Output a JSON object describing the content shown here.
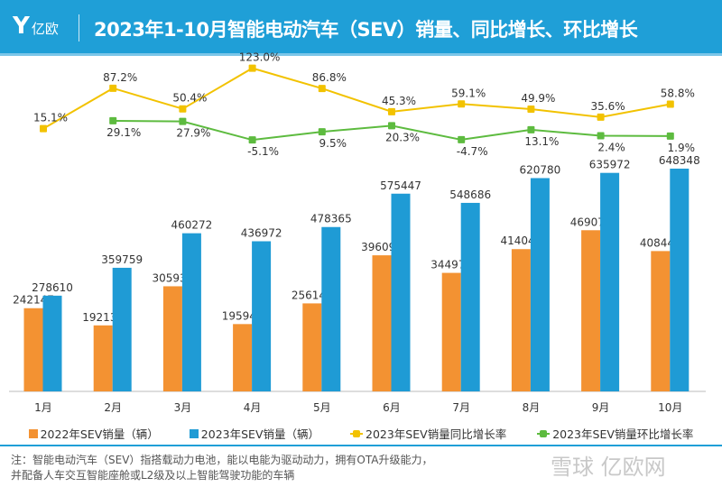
{
  "header": {
    "logo_text": "亿欧",
    "title": "2023年1-10月智能电动汽车（SEV）销量、同比增长、环比增长"
  },
  "colors": {
    "header": "#1f9fd7",
    "bar2022": "#f39232",
    "bar2023": "#1f9bd5",
    "yoy": "#f2c200",
    "mom": "#5dbb3f"
  },
  "chart_data": {
    "type": "bar+line",
    "categories": [
      "1月",
      "2月",
      "3月",
      "4月",
      "5月",
      "6月",
      "7月",
      "8月",
      "9月",
      "10月"
    ],
    "bar_series": [
      {
        "name": "2022年SEV销量（辆）",
        "values": [
          242147,
          192132,
          305938,
          195944,
          256142,
          396091,
          344976,
          414046,
          469075,
          408445
        ]
      },
      {
        "name": "2023年SEV销量（辆）",
        "values": [
          278610,
          359759,
          460272,
          436972,
          478365,
          575447,
          548686,
          620780,
          635972,
          648348
        ]
      }
    ],
    "line_series": [
      {
        "name": "2023年SEV销量同比增长率",
        "values": [
          15.1,
          87.2,
          50.4,
          123.0,
          86.8,
          45.3,
          59.1,
          49.9,
          35.6,
          58.8
        ],
        "labels": [
          "15.1%",
          "87.2%",
          "50.4%",
          "123.0%",
          "86.8%",
          "45.3%",
          "59.1%",
          "49.9%",
          "35.6%",
          "58.8%"
        ]
      },
      {
        "name": "2023年SEV销量环比增长率",
        "values": [
          null,
          29.1,
          27.9,
          -5.1,
          9.5,
          20.3,
          -4.7,
          13.1,
          2.4,
          1.9
        ],
        "labels": [
          "",
          "29.1%",
          "27.9%",
          "-5.1%",
          "9.5%",
          "20.3%",
          "-4.7%",
          "13.1%",
          "2.4%",
          "1.9%"
        ]
      }
    ],
    "legend_position": "bottom",
    "grid": false
  },
  "footer": {
    "note_line1": "注：智能电动汽车（SEV）指搭载动力电池，能以电能为驱动动力，拥有OTA升级能力，",
    "note_line2": "并配备人车交互智能座舱或L2级及以上智能驾驶功能的车辆",
    "watermark": "雪球 亿欧网"
  }
}
